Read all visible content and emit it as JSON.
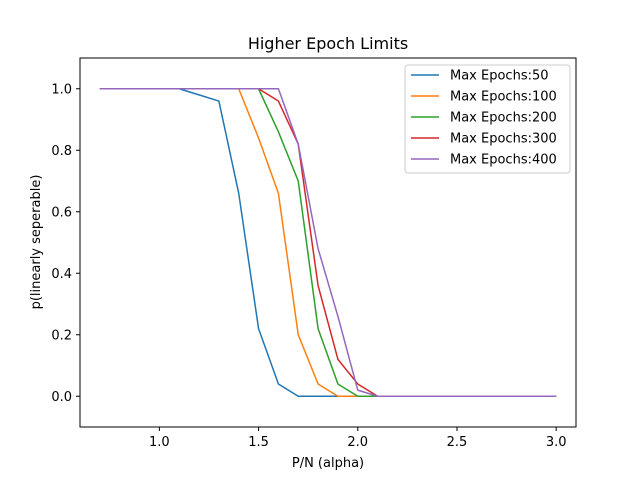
{
  "chart_data": {
    "type": "line",
    "title": "Higher Epoch Limits",
    "xlabel": "P/N (alpha)",
    "ylabel": "p(linearly seperable)",
    "xlim": [
      0.6,
      3.1
    ],
    "ylim": [
      -0.1,
      1.1
    ],
    "xticks": [
      1.0,
      1.5,
      2.0,
      2.5,
      3.0
    ],
    "xtick_labels": [
      "1.0",
      "1.5",
      "2.0",
      "2.5",
      "3.0"
    ],
    "yticks": [
      0.0,
      0.2,
      0.4,
      0.6,
      0.8,
      1.0
    ],
    "ytick_labels": [
      "0.0",
      "0.2",
      "0.4",
      "0.6",
      "0.8",
      "1.0"
    ],
    "grid": false,
    "legend_position": "top-right",
    "x": [
      0.7,
      0.8,
      0.9,
      1.0,
      1.1,
      1.2,
      1.3,
      1.4,
      1.5,
      1.6,
      1.7,
      1.8,
      1.9,
      2.0,
      2.1,
      2.2,
      2.3,
      2.4,
      2.5,
      2.6,
      2.7,
      2.8,
      2.9,
      3.0
    ],
    "series": [
      {
        "name": "Max Epochs:50",
        "color": "#1f77b4",
        "values": [
          1.0,
          1.0,
          1.0,
          1.0,
          1.0,
          0.98,
          0.96,
          0.66,
          0.22,
          0.04,
          0.0,
          0.0,
          0.0,
          0.0,
          0.0,
          0.0,
          0.0,
          0.0,
          0.0,
          0.0,
          0.0,
          0.0,
          0.0,
          0.0
        ]
      },
      {
        "name": "Max Epochs:100",
        "color": "#ff7f0e",
        "values": [
          1.0,
          1.0,
          1.0,
          1.0,
          1.0,
          1.0,
          1.0,
          1.0,
          0.84,
          0.66,
          0.2,
          0.04,
          0.0,
          0.0,
          0.0,
          0.0,
          0.0,
          0.0,
          0.0,
          0.0,
          0.0,
          0.0,
          0.0,
          0.0
        ]
      },
      {
        "name": "Max Epochs:200",
        "color": "#2ca02c",
        "values": [
          1.0,
          1.0,
          1.0,
          1.0,
          1.0,
          1.0,
          1.0,
          1.0,
          1.0,
          0.86,
          0.7,
          0.22,
          0.04,
          0.0,
          0.0,
          0.0,
          0.0,
          0.0,
          0.0,
          0.0,
          0.0,
          0.0,
          0.0,
          0.0
        ]
      },
      {
        "name": "Max Epochs:300",
        "color": "#d62728",
        "values": [
          1.0,
          1.0,
          1.0,
          1.0,
          1.0,
          1.0,
          1.0,
          1.0,
          1.0,
          0.96,
          0.82,
          0.36,
          0.12,
          0.04,
          0.0,
          0.0,
          0.0,
          0.0,
          0.0,
          0.0,
          0.0,
          0.0,
          0.0,
          0.0
        ]
      },
      {
        "name": "Max Epochs:400",
        "color": "#9467bd",
        "values": [
          1.0,
          1.0,
          1.0,
          1.0,
          1.0,
          1.0,
          1.0,
          1.0,
          1.0,
          1.0,
          0.82,
          0.48,
          0.26,
          0.02,
          0.0,
          0.0,
          0.0,
          0.0,
          0.0,
          0.0,
          0.0,
          0.0,
          0.0,
          0.0
        ]
      }
    ]
  }
}
